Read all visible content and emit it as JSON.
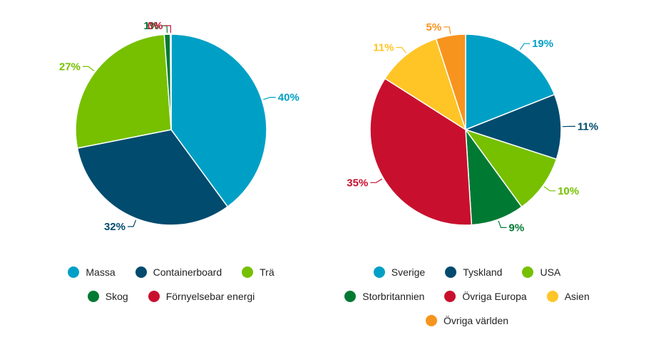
{
  "chart_data": [
    {
      "type": "pie",
      "slices": [
        {
          "label": "Massa",
          "value": 40,
          "display": "40%",
          "color": "#00a0c6"
        },
        {
          "label": "Containerboard",
          "value": 32,
          "display": "32%",
          "color": "#004b6e"
        },
        {
          "label": "Trä",
          "value": 27,
          "display": "27%",
          "color": "#76c000"
        },
        {
          "label": "Skog",
          "value": 1,
          "display": "1%",
          "color": "#007a33"
        },
        {
          "label": "Förnyelsebar energi",
          "value": 0.15,
          "display": "0%",
          "color": "#c8102e"
        }
      ],
      "legend": [
        "Massa",
        "Containerboard",
        "Trä",
        "Skog",
        "Förnyelsebar energi"
      ]
    },
    {
      "type": "pie",
      "slices": [
        {
          "label": "Sverige",
          "value": 19,
          "display": "19%",
          "color": "#00a0c6"
        },
        {
          "label": "Tyskland",
          "value": 11,
          "display": "11%",
          "color": "#004b6e"
        },
        {
          "label": "USA",
          "value": 10,
          "display": "10%",
          "color": "#76c000"
        },
        {
          "label": "Storbritannien",
          "value": 9,
          "display": "9%",
          "color": "#007a33"
        },
        {
          "label": "Övriga Europa",
          "value": 35,
          "display": "35%",
          "color": "#c8102e"
        },
        {
          "label": "Asien",
          "value": 11,
          "display": "11%",
          "color": "#ffc527"
        },
        {
          "label": "Övriga världen",
          "value": 5,
          "display": "5%",
          "color": "#f7941d"
        }
      ],
      "legend": [
        "Sverige",
        "Tyskland",
        "USA",
        "Storbritannien",
        "Övriga Europa",
        "Asien",
        "Övriga världen"
      ]
    }
  ]
}
